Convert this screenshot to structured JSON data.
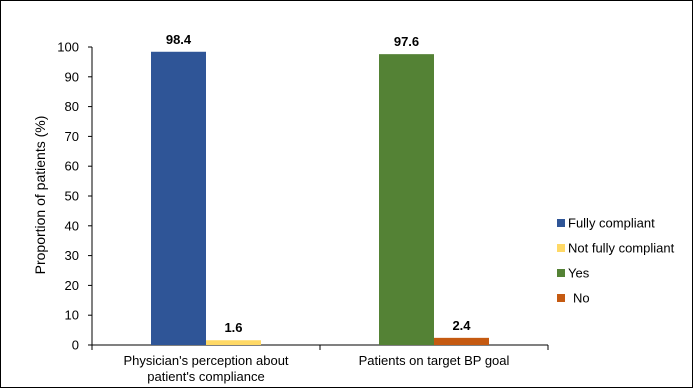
{
  "chart_data": {
    "type": "bar",
    "ylabel": "Proportion of patients (%)",
    "xlabel": "",
    "title": "",
    "ylim": [
      0,
      100
    ],
    "yticks": [
      0,
      10,
      20,
      30,
      40,
      50,
      60,
      70,
      80,
      90,
      100
    ],
    "groups": [
      {
        "label_lines": [
          "Physician's perception about",
          "patient's compliance"
        ],
        "bars": [
          {
            "series": "Fully compliant",
            "value": 98.4,
            "label": "98.4"
          },
          {
            "series": "Not fully compliant",
            "value": 1.6,
            "label": "1.6"
          }
        ]
      },
      {
        "label_lines": [
          "Patients on target BP goal"
        ],
        "bars": [
          {
            "series": "Yes",
            "value": 97.6,
            "label": "97.6"
          },
          {
            "series": "No",
            "value": 2.4,
            "label": "2.4"
          }
        ]
      }
    ],
    "legend": {
      "placement": "right",
      "items": [
        {
          "name": "Fully compliant",
          "color": "#2F5597"
        },
        {
          "name": "Not fully compliant",
          "color": "#FFD966"
        },
        {
          "name": "Yes",
          "color": "#548235"
        },
        {
          "name": "No",
          "color": "#C55A11"
        }
      ]
    },
    "grid": false
  }
}
